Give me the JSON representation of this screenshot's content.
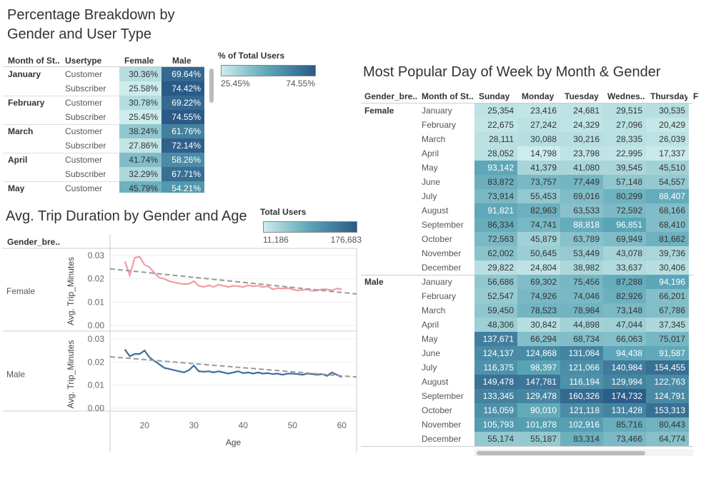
{
  "colors": {
    "low": "#cdeceb",
    "mid": "#5aa5b6",
    "high": "#2b5a87",
    "female_line": "#f49aa4",
    "male_line": "#3d6e9f",
    "trend": "#999999"
  },
  "pct": {
    "title_line1": "Percentage Breakdown by",
    "title_line2": "Gender and User Type",
    "headers": {
      "month": "Month of St..",
      "usertype": "Usertype",
      "female": "Female",
      "male": "Male"
    },
    "legend": {
      "title": "% of Total Users",
      "min": "25.45%",
      "max": "74.55%"
    },
    "groups": [
      {
        "month": "January",
        "rows": [
          {
            "usertype": "Customer",
            "female": "30.36%",
            "male": "69.64%",
            "f": 30.36,
            "m": 69.64
          },
          {
            "usertype": "Subscriber",
            "female": "25.58%",
            "male": "74.42%",
            "f": 25.58,
            "m": 74.42
          }
        ]
      },
      {
        "month": "February",
        "rows": [
          {
            "usertype": "Customer",
            "female": "30.78%",
            "male": "69.22%",
            "f": 30.78,
            "m": 69.22
          },
          {
            "usertype": "Subscriber",
            "female": "25.45%",
            "male": "74.55%",
            "f": 25.45,
            "m": 74.55
          }
        ]
      },
      {
        "month": "March",
        "rows": [
          {
            "usertype": "Customer",
            "female": "38.24%",
            "male": "61.76%",
            "f": 38.24,
            "m": 61.76
          },
          {
            "usertype": "Subscriber",
            "female": "27.86%",
            "male": "72.14%",
            "f": 27.86,
            "m": 72.14
          }
        ]
      },
      {
        "month": "April",
        "rows": [
          {
            "usertype": "Customer",
            "female": "41.74%",
            "male": "58.26%",
            "f": 41.74,
            "m": 58.26
          },
          {
            "usertype": "Subscriber",
            "female": "32.29%",
            "male": "67.71%",
            "f": 32.29,
            "m": 67.71
          }
        ]
      },
      {
        "month": "May",
        "rows": [
          {
            "usertype": "Customer",
            "female": "45.79%",
            "male": "54.21%",
            "f": 45.79,
            "m": 54.21
          }
        ]
      }
    ]
  },
  "dur": {
    "title": "Avg. Trip Duration by Gender and Age",
    "row_header": "Gender_bre..",
    "legend": {
      "title": "Total Users",
      "min": "11,186",
      "max": "176,683"
    },
    "ylabel": "Avg. Trip_Minutes",
    "xlabel": "Age",
    "y_ticks": [
      "0.03",
      "0.02",
      "0.01",
      "0.00"
    ],
    "x_ticks": [
      "20",
      "30",
      "40",
      "50",
      "60"
    ],
    "panels": [
      {
        "name": "Female",
        "ages": [
          16,
          17,
          18,
          19,
          20,
          21,
          22,
          23,
          24,
          25,
          26,
          27,
          28,
          29,
          30,
          31,
          32,
          33,
          34,
          35,
          36,
          37,
          38,
          39,
          40,
          41,
          42,
          43,
          44,
          45,
          46,
          47,
          48,
          49,
          50,
          51,
          52,
          53,
          54,
          55,
          56,
          57,
          58,
          59,
          60
        ],
        "values": [
          0.0275,
          0.0215,
          0.029,
          0.0295,
          0.026,
          0.025,
          0.0225,
          0.0205,
          0.02,
          0.019,
          0.0185,
          0.018,
          0.0178,
          0.0178,
          0.019,
          0.017,
          0.0165,
          0.0172,
          0.0165,
          0.0175,
          0.017,
          0.0165,
          0.017,
          0.0168,
          0.0165,
          0.0172,
          0.0168,
          0.017,
          0.0165,
          0.0168,
          0.0155,
          0.016,
          0.0158,
          0.016,
          0.0155,
          0.015,
          0.0152,
          0.0155,
          0.0148,
          0.015,
          0.0155,
          0.0155,
          0.015,
          0.0158,
          0.0155
        ],
        "trend": [
          0.0243,
          0.0135
        ]
      },
      {
        "name": "Male",
        "ages": [
          16,
          17,
          18,
          19,
          20,
          21,
          22,
          23,
          24,
          25,
          26,
          27,
          28,
          29,
          30,
          31,
          32,
          33,
          34,
          35,
          36,
          37,
          38,
          39,
          40,
          41,
          42,
          43,
          44,
          45,
          46,
          47,
          48,
          49,
          50,
          51,
          52,
          53,
          54,
          55,
          56,
          57,
          58,
          59,
          60
        ],
        "values": [
          0.0255,
          0.0225,
          0.0235,
          0.0235,
          0.025,
          0.022,
          0.0205,
          0.019,
          0.0175,
          0.017,
          0.0165,
          0.016,
          0.0155,
          0.0165,
          0.0185,
          0.016,
          0.0158,
          0.016,
          0.0155,
          0.016,
          0.0155,
          0.015,
          0.0155,
          0.016,
          0.0152,
          0.0155,
          0.015,
          0.0155,
          0.015,
          0.0152,
          0.0148,
          0.015,
          0.0145,
          0.015,
          0.015,
          0.0148,
          0.0145,
          0.015,
          0.0148,
          0.0145,
          0.0148,
          0.014,
          0.0155,
          0.0145,
          0.0135
        ],
        "trend": [
          0.0223,
          0.0135
        ]
      }
    ]
  },
  "chart_data": {
    "type": "heatmap",
    "title": "Most Popular Day of Week by Month & Gender",
    "headers": {
      "gender": "Gender_bre..",
      "month": "Month of St..",
      "days": [
        "Sunday",
        "Monday",
        "Tuesday",
        "Wednes..",
        "Thursday",
        "F"
      ]
    },
    "range": [
      14798,
      176683
    ],
    "groups": [
      {
        "gender": "Female",
        "rows": [
          {
            "month": "January",
            "values": [
              25354,
              23416,
              24681,
              29515,
              30535
            ]
          },
          {
            "month": "February",
            "values": [
              22675,
              27242,
              24329,
              27096,
              20429
            ]
          },
          {
            "month": "March",
            "values": [
              28111,
              30088,
              30216,
              28335,
              26039
            ]
          },
          {
            "month": "April",
            "values": [
              28052,
              14798,
              23798,
              22995,
              17337
            ]
          },
          {
            "month": "May",
            "values": [
              93142,
              41379,
              41080,
              39545,
              45510
            ]
          },
          {
            "month": "June",
            "values": [
              83872,
              73757,
              77449,
              57148,
              54557
            ]
          },
          {
            "month": "July",
            "values": [
              73914,
              55453,
              69016,
              80299,
              88407
            ]
          },
          {
            "month": "August",
            "values": [
              91821,
              82963,
              63533,
              72592,
              68166
            ]
          },
          {
            "month": "September",
            "values": [
              86334,
              74741,
              88818,
              96851,
              68410
            ]
          },
          {
            "month": "October",
            "values": [
              72563,
              45879,
              63789,
              69949,
              81662
            ]
          },
          {
            "month": "November",
            "values": [
              62002,
              50645,
              53449,
              43078,
              39736
            ]
          },
          {
            "month": "December",
            "values": [
              29822,
              24804,
              38982,
              33637,
              30406
            ]
          }
        ]
      },
      {
        "gender": "Male",
        "rows": [
          {
            "month": "January",
            "values": [
              56686,
              69302,
              75456,
              87288,
              94196
            ]
          },
          {
            "month": "February",
            "values": [
              52547,
              74926,
              74046,
              82926,
              66201
            ]
          },
          {
            "month": "March",
            "values": [
              59450,
              78523,
              78984,
              73148,
              67786
            ]
          },
          {
            "month": "April",
            "values": [
              48306,
              30842,
              44898,
              47044,
              37345
            ]
          },
          {
            "month": "May",
            "values": [
              137671,
              66294,
              68734,
              66063,
              75017
            ]
          },
          {
            "month": "June",
            "values": [
              124137,
              124868,
              131084,
              94438,
              91587
            ]
          },
          {
            "month": "July",
            "values": [
              116375,
              98397,
              121066,
              140984,
              154455
            ]
          },
          {
            "month": "August",
            "values": [
              149478,
              147781,
              116194,
              129994,
              122763
            ]
          },
          {
            "month": "September",
            "values": [
              133345,
              129478,
              160326,
              174732,
              124791
            ]
          },
          {
            "month": "October",
            "values": [
              116059,
              90010,
              121118,
              131428,
              153313
            ]
          },
          {
            "month": "November",
            "values": [
              105793,
              101878,
              102916,
              85716,
              80443
            ]
          },
          {
            "month": "December",
            "values": [
              55174,
              55187,
              83314,
              73466,
              64774
            ]
          }
        ]
      }
    ]
  }
}
